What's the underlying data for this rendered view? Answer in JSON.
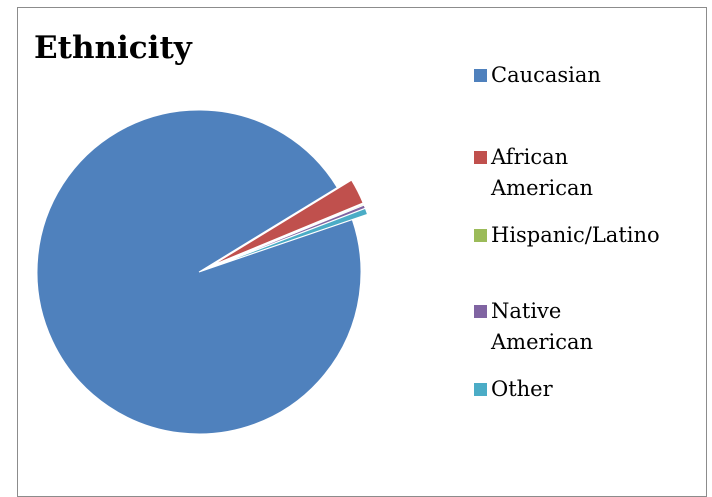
{
  "chart_data": {
    "type": "pie",
    "title": "Ethnicity",
    "legend_position": "right",
    "categories": [
      "Caucasian",
      "African American",
      "Hispanic/Latino",
      "Native American",
      "Other"
    ],
    "values": [
      96.5,
      2.5,
      0.1,
      0.3,
      0.6
    ],
    "colors": [
      "#4f81bd",
      "#c0504d",
      "#9bbb59",
      "#8064a2",
      "#4bacc6"
    ],
    "legend_labels": [
      "Caucasian",
      "African\nAmerican",
      "Hispanic/Latino",
      "Native\nAmerican",
      "Other"
    ],
    "exploded": true
  }
}
